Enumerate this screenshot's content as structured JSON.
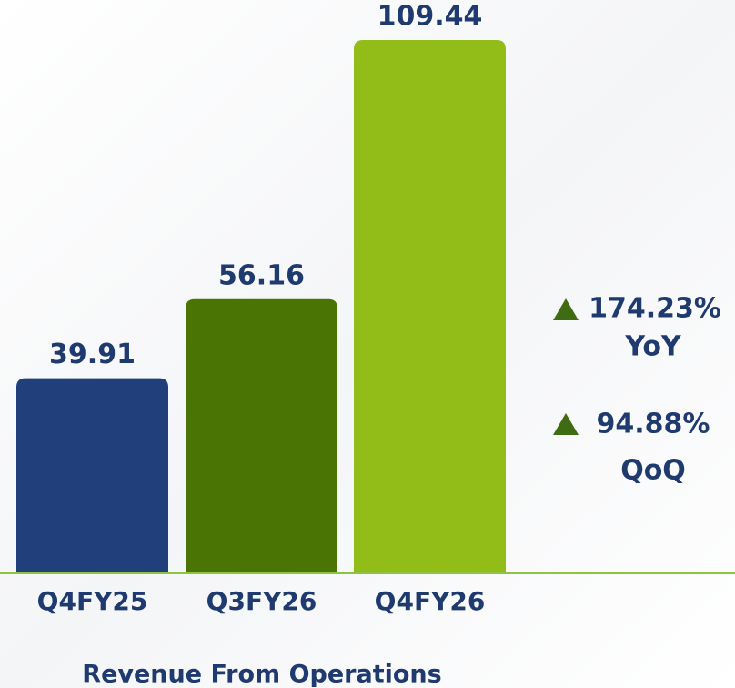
{
  "chart_data": {
    "type": "bar",
    "title": "Revenue From Operations",
    "categories": [
      "Q4FY25",
      "Q3FY26",
      "Q4FY26"
    ],
    "values": [
      39.91,
      56.16,
      109.44
    ],
    "colors": [
      "#213f7a",
      "#4a7404",
      "#92bd19"
    ],
    "ylim": [
      0,
      110
    ],
    "annotations": [
      {
        "text": "174.23%",
        "label": "YoY"
      },
      {
        "text": "94.88%",
        "label": "QoQ"
      }
    ]
  }
}
